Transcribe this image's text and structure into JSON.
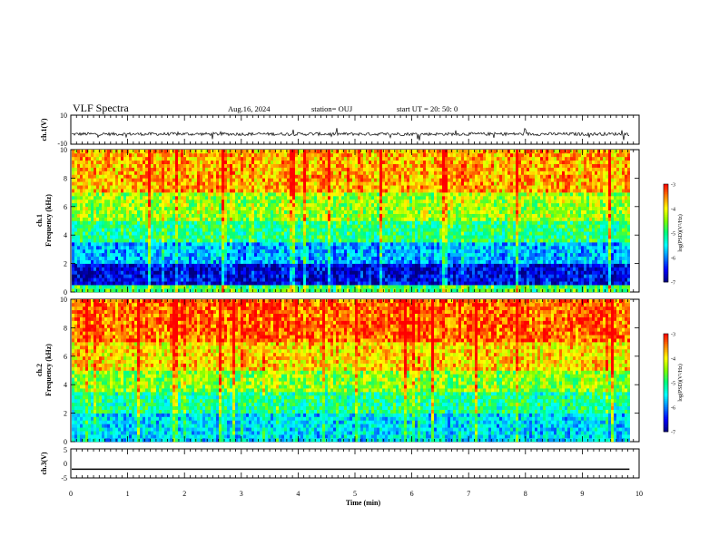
{
  "header": {
    "title": "VLF Spectra",
    "date": "Aug.16, 2024",
    "station": "station= OUJ",
    "start": "start  UT  =   20: 50: 0"
  },
  "colors": {
    "colormap": [
      "#000080",
      "#0000ff",
      "#0080ff",
      "#00ffff",
      "#00ff80",
      "#80ff00",
      "#ffff00",
      "#ff8000",
      "#ff0000",
      "#ffffff"
    ],
    "trace": "#000000"
  },
  "chart_data": [
    {
      "type": "line",
      "name": "ch1-waveform",
      "ylabel": "ch.1(V)",
      "ylim": [
        -10,
        10
      ],
      "ytick_labels": [
        "10",
        "-10"
      ],
      "baseline": -3,
      "xlim": [
        0,
        10
      ],
      "data_end": 9.83
    },
    {
      "type": "heatmap",
      "name": "ch1-spectrogram",
      "ylabel_line1": "ch.1",
      "ylabel_line2": "Frequency  (kHz)",
      "ylim": [
        0,
        10
      ],
      "yticks": [
        "0",
        "2",
        "4",
        "6",
        "8",
        "10"
      ],
      "xlim": [
        0,
        10
      ],
      "data_end": 9.83,
      "colorbar": {
        "label": "log(PSD)(V²/Hz)",
        "range": [
          -7,
          -3
        ],
        "ticks": [
          "-3",
          "-4",
          "-5",
          "-6",
          "-7"
        ]
      },
      "band_levels": [
        {
          "f_from": 0,
          "f_to": 0.5,
          "level": -4.8
        },
        {
          "f_from": 0.5,
          "f_to": 2,
          "level": -6.6
        },
        {
          "f_from": 2,
          "f_to": 3.5,
          "level": -5.8
        },
        {
          "f_from": 3.5,
          "f_to": 5,
          "level": -5.0
        },
        {
          "f_from": 5,
          "f_to": 7,
          "level": -4.4
        },
        {
          "f_from": 7,
          "f_to": 10,
          "level": -3.7
        }
      ]
    },
    {
      "type": "heatmap",
      "name": "ch2-spectrogram",
      "ylabel_line1": "ch.2",
      "ylabel_line2": "Frequency  (kHz)",
      "ylim": [
        0,
        10
      ],
      "yticks": [
        "0",
        "2",
        "4",
        "6",
        "8",
        "10"
      ],
      "xlim": [
        0,
        10
      ],
      "data_end": 9.83,
      "colorbar": {
        "label": "log(PSD)(V²/Hz)",
        "range": [
          -7,
          -3
        ],
        "ticks": [
          "-3",
          "-4",
          "-5",
          "-6",
          "-7"
        ]
      },
      "band_levels": [
        {
          "f_from": 0,
          "f_to": 2,
          "level": -5.6
        },
        {
          "f_from": 2,
          "f_to": 3.5,
          "level": -5.1
        },
        {
          "f_from": 3.5,
          "f_to": 5,
          "level": -4.5
        },
        {
          "f_from": 5,
          "f_to": 7,
          "level": -3.9
        },
        {
          "f_from": 7,
          "f_to": 10,
          "level": -3.4
        }
      ]
    },
    {
      "type": "line",
      "name": "ch3-trace",
      "ylabel": "ch.3(V)",
      "ylim": [
        -5,
        5
      ],
      "ytick_labels": [
        "5",
        "0",
        "-5"
      ],
      "baseline": -2,
      "xlim": [
        0,
        10
      ],
      "data_end": 9.83
    }
  ],
  "xaxis": {
    "label": "Time  (min)",
    "ticks": [
      "0",
      "1",
      "2",
      "3",
      "4",
      "5",
      "6",
      "7",
      "8",
      "9",
      "10"
    ]
  }
}
